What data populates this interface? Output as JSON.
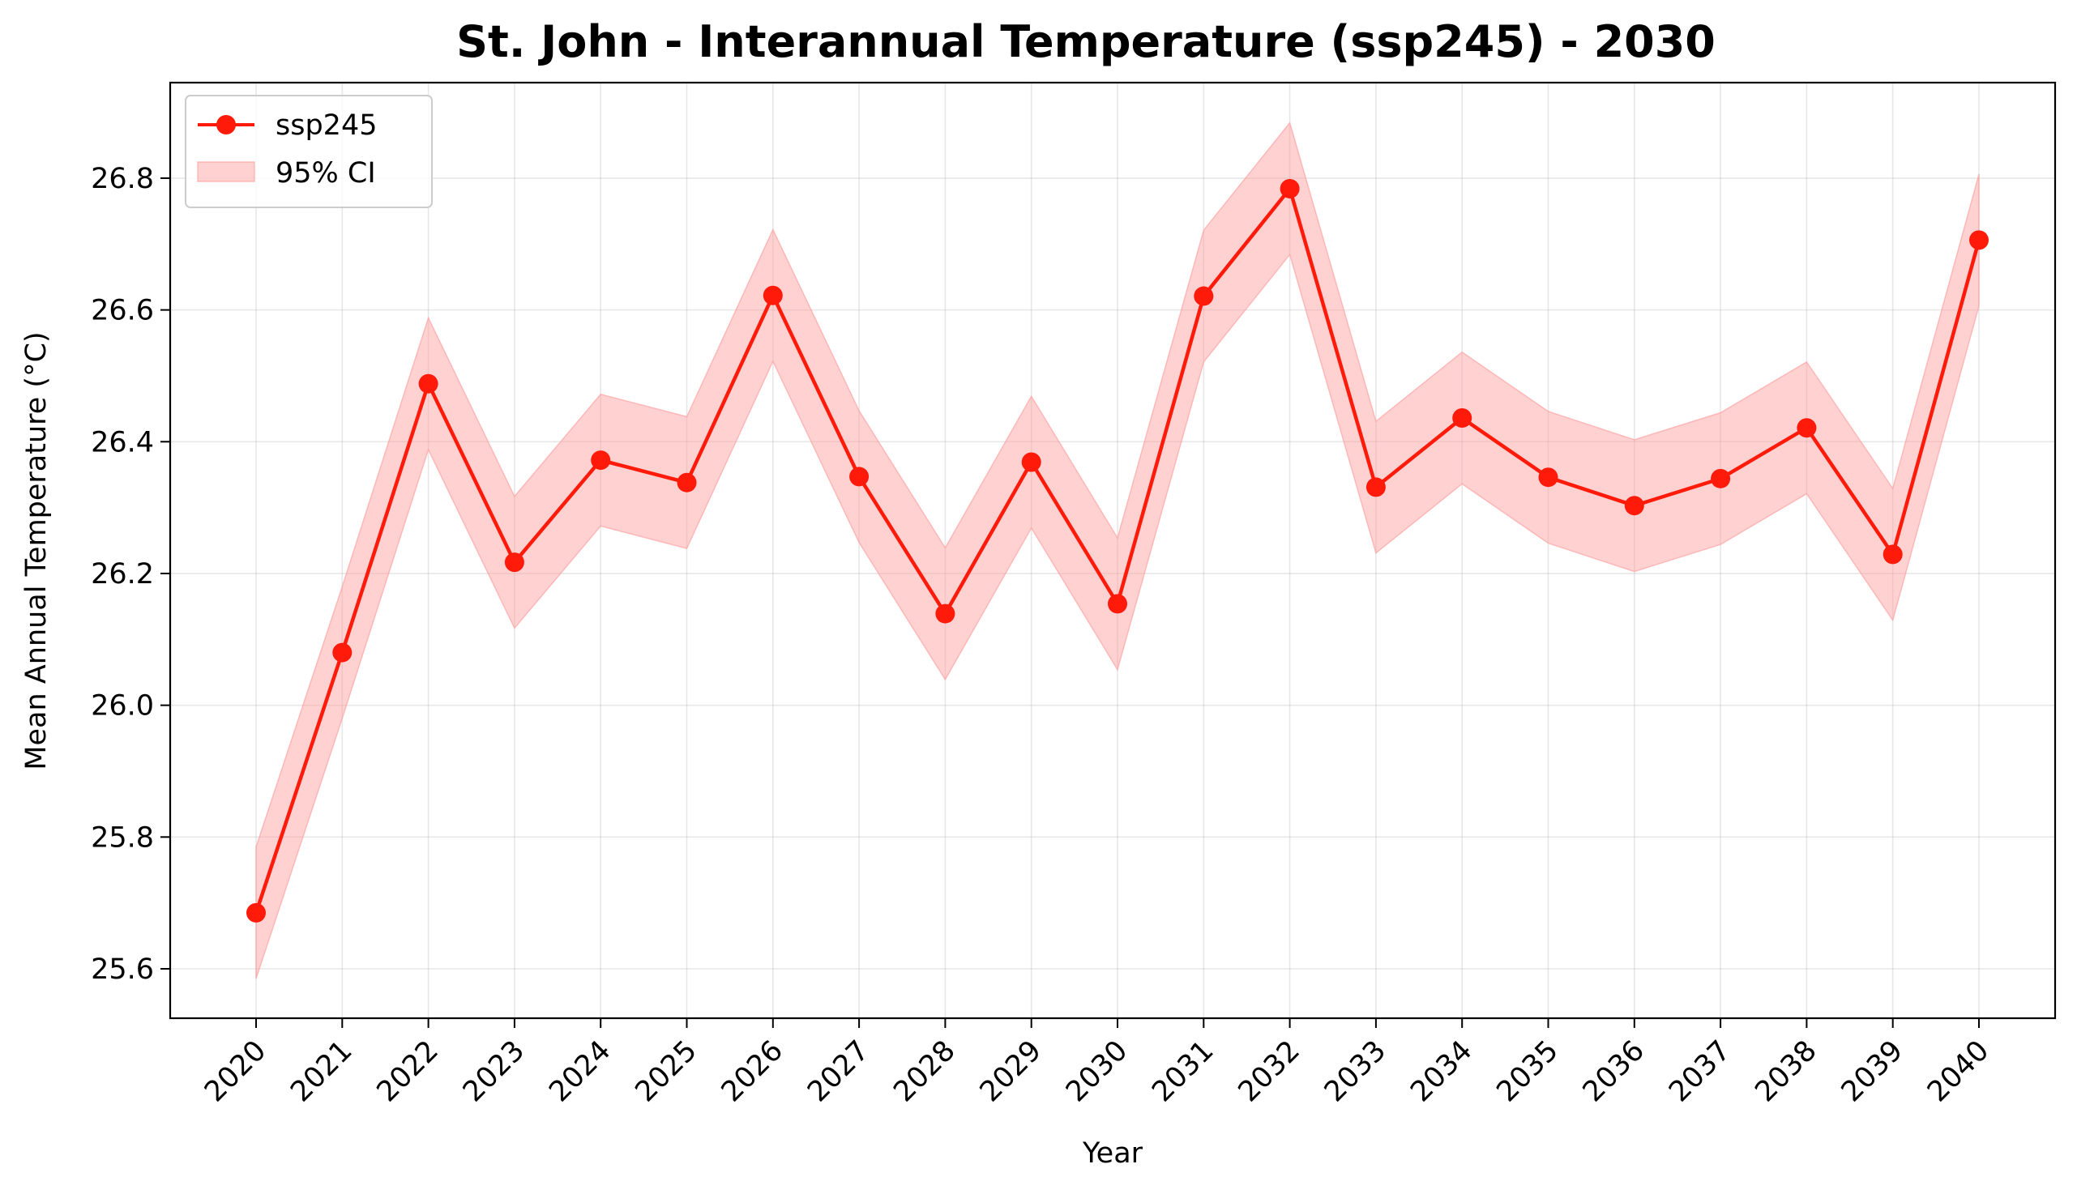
{
  "chart_data": {
    "type": "line",
    "title": "St. John - Interannual Temperature (ssp245) - 2030",
    "xlabel": "Year",
    "ylabel": "Mean Annual Temperature (°C)",
    "x": [
      2020,
      2021,
      2022,
      2023,
      2024,
      2025,
      2026,
      2027,
      2028,
      2029,
      2030,
      2031,
      2032,
      2033,
      2034,
      2035,
      2036,
      2037,
      2038,
      2039,
      2040
    ],
    "x_tick_labels": [
      "2020",
      "2021",
      "2022",
      "2023",
      "2024",
      "2025",
      "2026",
      "2027",
      "2028",
      "2029",
      "2030",
      "2031",
      "2032",
      "2033",
      "2034",
      "2035",
      "2036",
      "2037",
      "2038",
      "2039",
      "2040"
    ],
    "ylim": [
      25.525,
      26.945
    ],
    "y_ticks": [
      25.6,
      25.8,
      26.0,
      26.2,
      26.4,
      26.6,
      26.8
    ],
    "y_tick_labels": [
      "25.6",
      "25.8",
      "26.0",
      "26.2",
      "26.4",
      "26.6",
      "26.8"
    ],
    "grid": true,
    "legend_position": "top-left",
    "series": [
      {
        "name": "ssp245",
        "color": "#ff1a0a",
        "marker": "circle",
        "values": [
          25.685,
          26.08,
          26.488,
          26.217,
          26.372,
          26.338,
          26.622,
          26.347,
          26.139,
          26.369,
          26.154,
          26.621,
          26.784,
          26.331,
          26.436,
          26.346,
          26.303,
          26.344,
          26.421,
          26.229,
          26.706
        ]
      }
    ],
    "band": {
      "name": "95% CI",
      "color": "#ff9999",
      "lower": [
        25.585,
        25.98,
        26.388,
        26.117,
        26.272,
        26.238,
        26.522,
        26.247,
        26.039,
        26.269,
        26.054,
        26.521,
        26.684,
        26.231,
        26.336,
        26.246,
        26.203,
        26.244,
        26.321,
        26.129,
        26.606
      ],
      "upper": [
        25.785,
        26.18,
        26.588,
        26.317,
        26.472,
        26.438,
        26.722,
        26.447,
        26.239,
        26.469,
        26.254,
        26.721,
        26.884,
        26.431,
        26.536,
        26.446,
        26.403,
        26.444,
        26.521,
        26.329,
        26.806
      ]
    }
  }
}
